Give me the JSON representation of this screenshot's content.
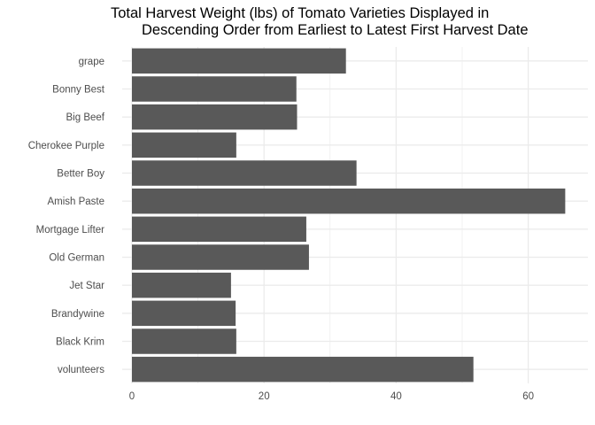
{
  "chart_data": {
    "type": "bar",
    "orientation": "horizontal",
    "title_lines": [
      "Total Harvest Weight (lbs) of Tomato Varieties Displayed in",
      "Descending Order from Earliest to Latest First Harvest Date"
    ],
    "xlabel": "",
    "ylabel": "",
    "categories": [
      "grape",
      "Bonny Best",
      "Big Beef",
      "Cherokee Purple",
      "Better Boy",
      "Amish Paste",
      "Mortgage Lifter",
      "Old German",
      "Jet Star",
      "Brandywine",
      "Black Krim",
      "volunteers"
    ],
    "values": [
      32.4,
      24.9,
      25.0,
      15.8,
      34.0,
      65.6,
      26.4,
      26.8,
      15.0,
      15.7,
      15.8,
      51.7
    ],
    "xlim": [
      0,
      67
    ],
    "xticks": [
      0,
      20,
      40,
      60
    ],
    "tick_labels": [
      "0",
      "20",
      "40",
      "60"
    ],
    "grid": true,
    "bar_color": "#595959",
    "grid_color": "#ebebeb"
  }
}
